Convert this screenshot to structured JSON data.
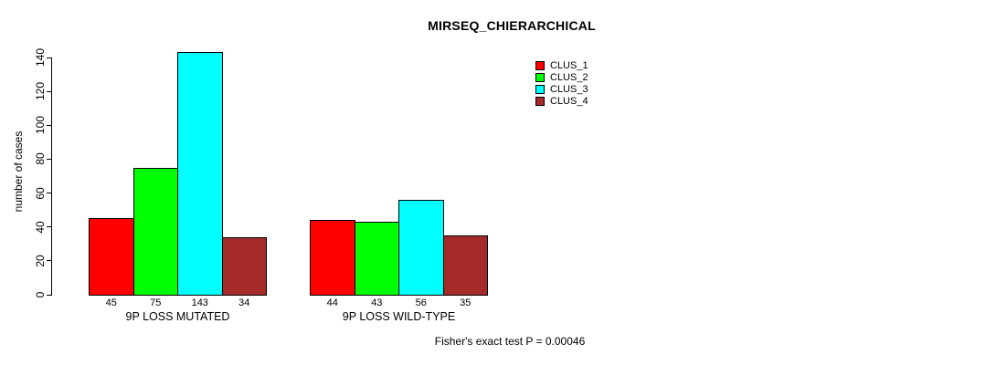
{
  "chart_data": {
    "type": "bar",
    "title": "MIRSEQ_CHIERARCHICAL",
    "xlabel": "",
    "ylabel": "number of cases",
    "categories": [
      "9P LOSS MUTATED",
      "9P LOSS WILD-TYPE"
    ],
    "series": [
      {
        "name": "CLUS_1",
        "color": "#ff0000",
        "values": [
          45,
          44
        ]
      },
      {
        "name": "CLUS_2",
        "color": "#00ff00",
        "values": [
          75,
          43
        ]
      },
      {
        "name": "CLUS_3",
        "color": "#00ffff",
        "values": [
          143,
          56
        ]
      },
      {
        "name": "CLUS_4",
        "color": "#a52a2a",
        "values": [
          34,
          35
        ]
      }
    ],
    "bar_value_labels": [
      [
        45,
        75,
        143,
        34
      ],
      [
        44,
        43,
        56,
        35
      ]
    ],
    "yticks": [
      0,
      20,
      40,
      60,
      80,
      100,
      120,
      140
    ],
    "ylim": [
      0,
      140
    ],
    "grid": false,
    "legend_position": "top-right-inside",
    "legend_entries": [
      "CLUS_1",
      "CLUS_2",
      "CLUS_3",
      "CLUS_4"
    ],
    "annotation": "Fisher's exact test P = 0.00046"
  }
}
